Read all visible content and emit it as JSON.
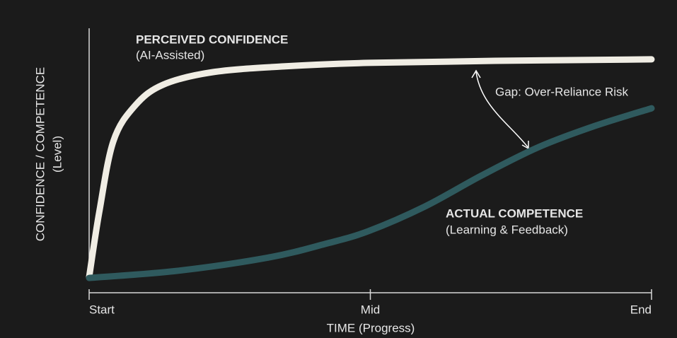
{
  "chart_data": {
    "type": "line",
    "x_label": "TIME (Progress)",
    "y_label": "CONFIDENCE / COMPETENCE",
    "y_label_note": "(Level)",
    "xlim": [
      0,
      100
    ],
    "xticks": [
      {
        "value": 0,
        "label": "Start"
      },
      {
        "value": 50,
        "label": "Mid"
      },
      {
        "value": 100,
        "label": "End"
      }
    ],
    "ylim": [
      0,
      100
    ],
    "series": [
      {
        "name": "PERCEIVED CONFIDENCE",
        "note": "(AI-Assisted)",
        "color": "#f0ede4",
        "label_color": "#ffffff",
        "x": [
          0,
          1.8,
          4.3,
          8.1,
          13.1,
          21.9,
          34.6,
          49.6,
          72.2,
          100
        ],
        "values": [
          1.4,
          27.2,
          55.2,
          69.2,
          77.6,
          82.6,
          84.9,
          86.3,
          87.1,
          87.7
        ]
      },
      {
        "name": "ACTUAL COMPETENCE",
        "note": "(Learning & Feedback)",
        "color": "#2f5a5e",
        "label_color": "#3f6d72",
        "x": [
          0,
          15.6,
          31.9,
          42.0,
          49.6,
          59.7,
          69.8,
          79.9,
          89.9,
          100
        ],
        "values": [
          1.1,
          3.9,
          9.2,
          14.6,
          19.6,
          29.4,
          41.7,
          52.9,
          61.3,
          68.3
        ]
      }
    ],
    "annotations": [
      {
        "text": "Gap: Over-Reliance Risk"
      }
    ]
  }
}
